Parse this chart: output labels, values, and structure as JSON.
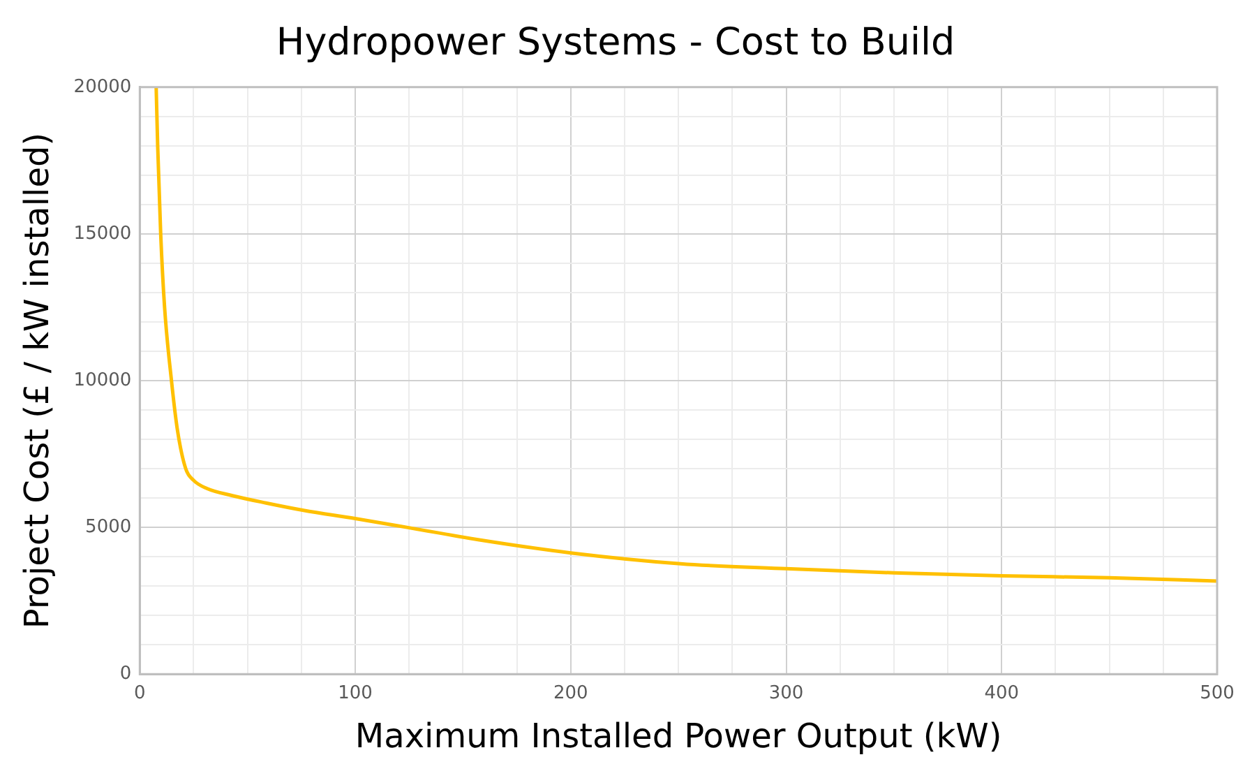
{
  "chart_data": {
    "type": "line",
    "title": "Hydropower Systems - Cost to Build",
    "xlabel": "Maximum Installed Power Output (kW)",
    "ylabel": "Project Cost (£ / kW installed)",
    "x": [
      7.6,
      8.3,
      9.7,
      11.5,
      14.7,
      17.5,
      21.3,
      25,
      31,
      43,
      58.6,
      76,
      100,
      124,
      157,
      200,
      251,
      300,
      350,
      400,
      450,
      500
    ],
    "series": [
      {
        "color": "#ffc000",
        "values": [
          20000,
          18000,
          15000,
          12500,
          10000,
          8300,
          7000,
          6600,
          6330,
          6080,
          5830,
          5580,
          5300,
          5000,
          4580,
          4130,
          3760,
          3590,
          3450,
          3350,
          3280,
          3170
        ]
      }
    ],
    "xlim": [
      0,
      500
    ],
    "ylim": [
      0,
      20000
    ],
    "xticks": [
      0,
      {
        "value": 25,
        "label": null
      },
      {
        "value": 50,
        "label": null
      },
      {
        "value": 75,
        "label": null
      },
      100,
      {
        "value": 125,
        "label": null
      },
      {
        "value": 150,
        "label": null
      },
      {
        "value": 175,
        "label": null
      },
      200,
      {
        "value": 225,
        "label": null
      },
      {
        "value": 250,
        "label": null
      },
      {
        "value": 275,
        "label": null
      },
      300,
      {
        "value": 325,
        "label": null
      },
      {
        "value": 350,
        "label": null
      },
      {
        "value": 375,
        "label": null
      },
      400,
      {
        "value": 425,
        "label": null
      },
      {
        "value": 450,
        "label": null
      },
      {
        "value": 475,
        "label": null
      },
      500
    ],
    "yticks": [
      0,
      {
        "value": 1000,
        "label": null
      },
      {
        "value": 2000,
        "label": null
      },
      {
        "value": 3000,
        "label": null
      },
      {
        "value": 4000,
        "label": null
      },
      5000,
      {
        "value": 6000,
        "label": null
      },
      {
        "value": 7000,
        "label": null
      },
      {
        "value": 8000,
        "label": null
      },
      {
        "value": 9000,
        "label": null
      },
      10000,
      {
        "value": 11000,
        "label": null
      },
      {
        "value": 12000,
        "label": null
      },
      {
        "value": 13000,
        "label": null
      },
      {
        "value": 14000,
        "label": null
      },
      15000,
      {
        "value": 16000,
        "label": null
      },
      {
        "value": 17000,
        "label": null
      },
      {
        "value": 18000,
        "label": null
      },
      {
        "value": 19000,
        "label": null
      },
      20000
    ],
    "grid": true,
    "marker": "none",
    "line_style": "solid"
  }
}
